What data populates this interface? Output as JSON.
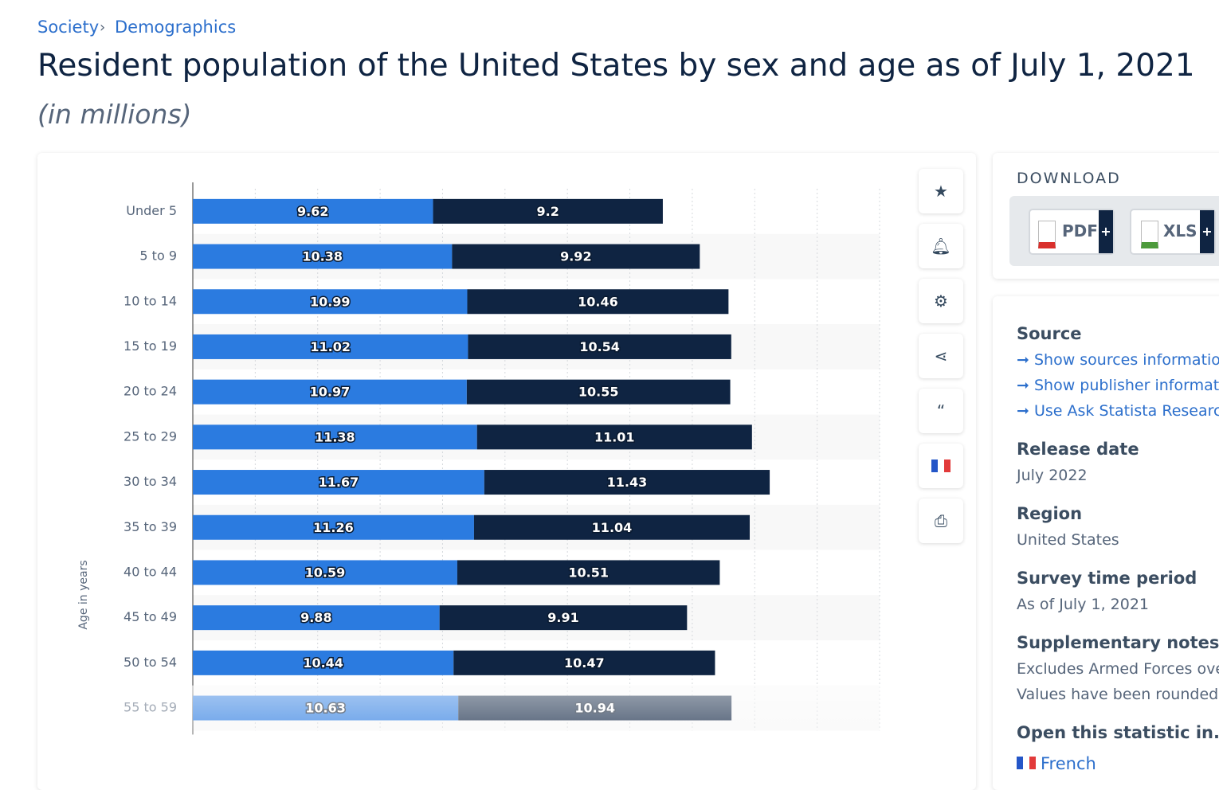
{
  "breadcrumb": [
    "Society",
    "Demographics"
  ],
  "title": "Resident population of the United States by sex and age as of July 1, 2021",
  "subtitle": "(in millions)",
  "chart_data": {
    "type": "bar",
    "orientation": "horizontal",
    "stacked": true,
    "y_label": "Age in years",
    "categories": [
      "Under 5",
      "5 to 9",
      "10 to 14",
      "15 to 19",
      "20 to 24",
      "25 to 29",
      "30 to 34",
      "35 to 39",
      "40 to 44",
      "45 to 49",
      "50 to 54",
      "55 to 59"
    ],
    "series": [
      {
        "color": "#2b7be0",
        "values": [
          9.62,
          10.38,
          10.99,
          11.02,
          10.97,
          11.38,
          11.67,
          11.26,
          10.59,
          9.88,
          10.44,
          10.63
        ]
      },
      {
        "color": "#0f2442",
        "values": [
          9.2,
          9.92,
          10.46,
          10.54,
          10.55,
          11.01,
          11.43,
          11.04,
          10.51,
          9.91,
          10.47,
          10.94
        ]
      }
    ],
    "xlim": [
      0,
      27.5
    ],
    "xticks": [
      0,
      2.5,
      5,
      7.5,
      10,
      12.5,
      15,
      17.5,
      20,
      22.5,
      25,
      27.5
    ],
    "grid": true
  },
  "sidebar": {
    "download": {
      "title": "DOWNLOAD",
      "buttons": [
        "PDF",
        "XLS"
      ]
    },
    "source": {
      "title": "Source",
      "links": [
        "Show sources information",
        "Show publisher information",
        "Use Ask Statista Research Service"
      ]
    },
    "fields": [
      {
        "label": "Release date",
        "value": "July 2022"
      },
      {
        "label": "Region",
        "value": "United States"
      },
      {
        "label": "Survey time period",
        "value": "As of July 1, 2021"
      }
    ],
    "notes": {
      "title": "Supplementary notes",
      "lines": [
        "Excludes Armed Forces overseas.",
        "Values have been rounded."
      ]
    },
    "open": {
      "title": "Open this statistic in...",
      "languages": [
        "French"
      ]
    }
  }
}
